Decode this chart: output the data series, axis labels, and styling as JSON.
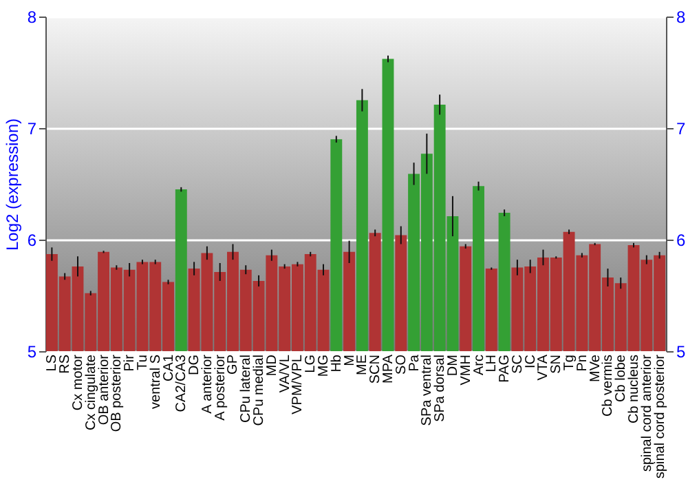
{
  "chart_data": {
    "type": "bar",
    "ylabel": "Log2 (expression)",
    "categories": [
      "LS",
      "RS",
      "Cx motor",
      "Cx cingulate",
      "OB anterior",
      "OB posterior",
      "Pir",
      "Tu",
      "ventral S",
      "CA1",
      "CA2/CA3",
      "DG",
      "A anterior",
      "A posterior",
      "GP",
      "CPu lateral",
      "CPu medial",
      "MD",
      "VA/VL",
      "VPM/VPL",
      "LG",
      "MG",
      "Hb",
      "M",
      "ME",
      "SCN",
      "MPA",
      "SO",
      "Pa",
      "SPa ventral",
      "SPa dorsal",
      "DM",
      "VMH",
      "Arc",
      "LH",
      "PAG",
      "SC",
      "IC",
      "VTA",
      "SN",
      "Tg",
      "Pn",
      "MVe",
      "Cb vermis",
      "Cb lobe",
      "Cb nucleus",
      "spinal cord anterior",
      "spinal cord posterior"
    ],
    "values": [
      5.87,
      5.67,
      5.76,
      5.52,
      5.89,
      5.75,
      5.73,
      5.8,
      5.8,
      5.62,
      6.45,
      5.74,
      5.88,
      5.71,
      5.89,
      5.73,
      5.63,
      5.86,
      5.76,
      5.78,
      5.87,
      5.73,
      6.9,
      5.89,
      7.25,
      6.06,
      7.62,
      6.04,
      6.59,
      6.77,
      7.21,
      6.21,
      5.94,
      6.48,
      5.74,
      6.24,
      5.75,
      5.76,
      5.84,
      5.84,
      6.07,
      5.86,
      5.96,
      5.66,
      5.61,
      5.95,
      5.82,
      5.86
    ],
    "errors": [
      0.06,
      0.03,
      0.09,
      0.02,
      0.01,
      0.02,
      0.06,
      0.02,
      0.02,
      0.02,
      0.02,
      0.06,
      0.06,
      0.08,
      0.07,
      0.04,
      0.05,
      0.05,
      0.02,
      0.02,
      0.02,
      0.05,
      0.03,
      0.1,
      0.1,
      0.03,
      0.03,
      0.08,
      0.1,
      0.18,
      0.09,
      0.18,
      0.02,
      0.04,
      0.01,
      0.03,
      0.07,
      0.06,
      0.07,
      0.01,
      0.02,
      0.02,
      0.01,
      0.08,
      0.05,
      0.02,
      0.04,
      0.03
    ],
    "colors": [
      "#b03434",
      "#b03434",
      "#b03434",
      "#b03434",
      "#b03434",
      "#b03434",
      "#b03434",
      "#b03434",
      "#b03434",
      "#b03434",
      "#34a034",
      "#b03434",
      "#b03434",
      "#b03434",
      "#b03434",
      "#b03434",
      "#b03434",
      "#b03434",
      "#b03434",
      "#b03434",
      "#b03434",
      "#b03434",
      "#34a034",
      "#b03434",
      "#34a034",
      "#b03434",
      "#34a034",
      "#b03434",
      "#34a034",
      "#34a034",
      "#34a034",
      "#34a034",
      "#b03434",
      "#34a034",
      "#b03434",
      "#34a034",
      "#b03434",
      "#b03434",
      "#b03434",
      "#b03434",
      "#b03434",
      "#b03434",
      "#b03434",
      "#b03434",
      "#b03434",
      "#b03434",
      "#b03434",
      "#b03434"
    ],
    "ylim": [
      5,
      8
    ],
    "yticks": [
      5,
      6,
      7,
      8
    ],
    "y2lim": [
      5,
      8
    ],
    "y2ticks": [
      5,
      6,
      7,
      8
    ],
    "grid": "y"
  }
}
